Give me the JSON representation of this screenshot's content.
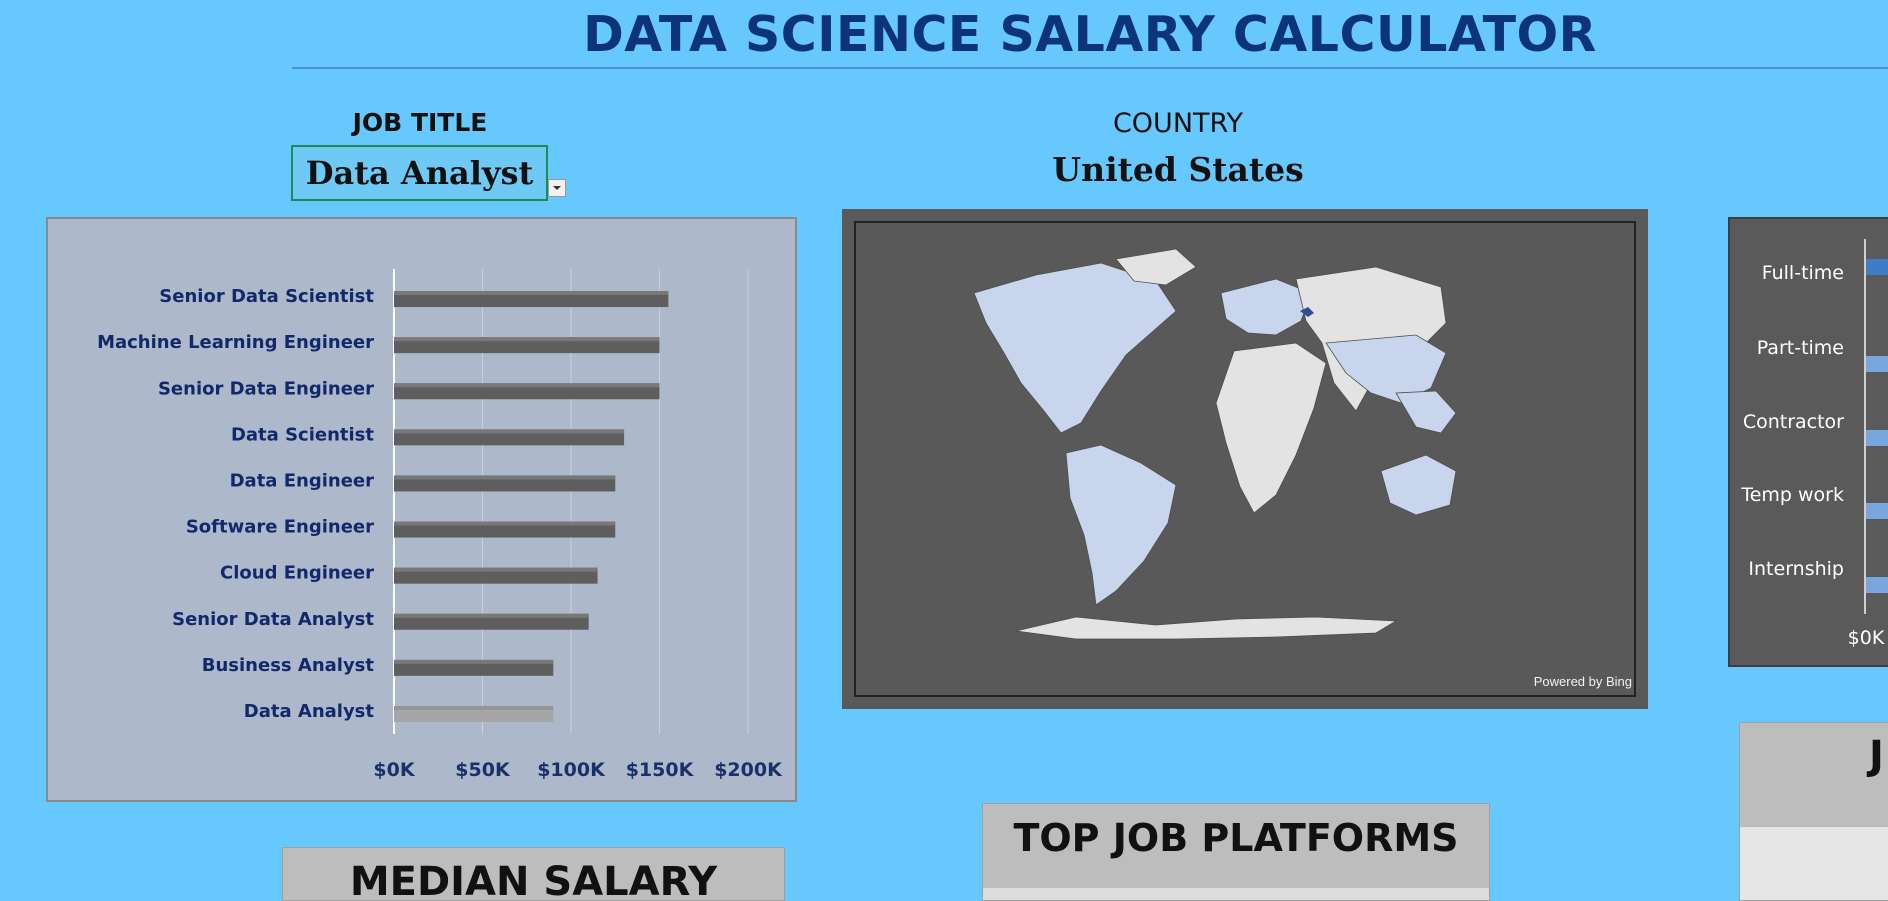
{
  "page": {
    "title": "DATA SCIENCE SALARY CALCULATOR"
  },
  "job": {
    "label": "JOB TITLE",
    "selected": "Data Analyst"
  },
  "country": {
    "label": "COUNTRY",
    "selected": "United States"
  },
  "colors": {
    "background": "#66c8fc",
    "title": "#0d3478",
    "bar": "#5e5e5e",
    "selected_bar": "#a6a6a6",
    "map_highlight": "#2f4f91",
    "map_fill": "#c9d5ed"
  },
  "chart_data": [
    {
      "type": "bar",
      "orientation": "horizontal",
      "categories": [
        "Senior Data Scientist",
        "Machine Learning Engineer",
        "Senior Data Engineer",
        "Data Scientist",
        "Data Engineer",
        "Software Engineer",
        "Cloud Engineer",
        "Senior Data Analyst",
        "Business Analyst",
        "Data Analyst"
      ],
      "values": [
        155000,
        150000,
        150000,
        130000,
        125000,
        125000,
        115000,
        110000,
        90000,
        90000
      ],
      "highlight": "Data Analyst",
      "xlim": [
        0,
        200000
      ],
      "xticks": [
        "$0K",
        "$50K",
        "$100K",
        "$150K",
        "$200K"
      ],
      "grid": true
    },
    {
      "type": "bar",
      "orientation": "horizontal",
      "categories": [
        "Full-time",
        "Part-time",
        "Contractor",
        "Temp work",
        "Internship"
      ],
      "xticks": [
        "$0K"
      ]
    }
  ],
  "map": {
    "attribution": "Powered by Bing"
  },
  "cards": {
    "median_salary": "MEDIAN SALARY",
    "top_platforms": "TOP JOB PLATFORMS",
    "partial_heading": "J"
  }
}
